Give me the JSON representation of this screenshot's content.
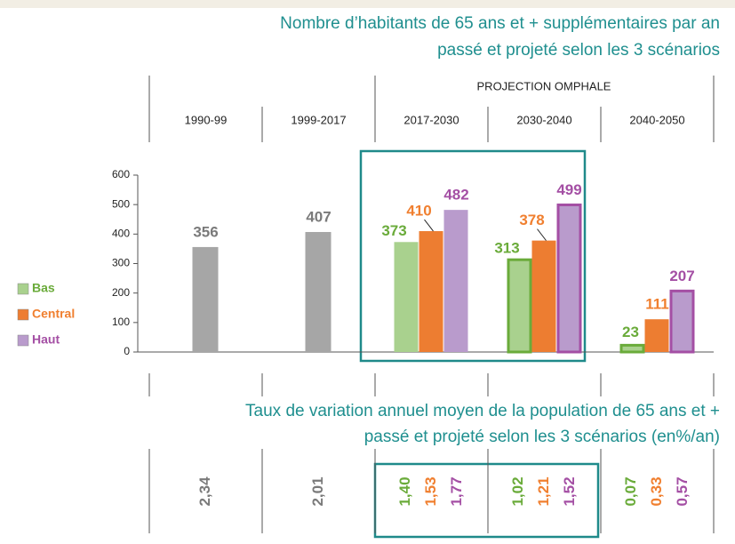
{
  "chart_data": {
    "type": "bar",
    "title": [
      "Nombre d’habitants de 65 ans et + supplémentaires par an",
      "passé et projeté selon les 3 scénarios"
    ],
    "group_label": "PROJECTION OMPHALE",
    "categories": [
      "1990-99",
      "1999-2017",
      "2017-2030",
      "2030-2040",
      "2040-2050"
    ],
    "ylim": [
      0,
      600
    ],
    "yticks": [
      0,
      100,
      200,
      300,
      400,
      500,
      600
    ],
    "series": [
      {
        "color": "#a6a6a6",
        "label_color": "#7a7a7a",
        "values": [
          356,
          407,
          null,
          null,
          null
        ]
      },
      {
        "name": "Bas",
        "color": "#a9d18e",
        "label_color": "#6aab3a",
        "values": [
          null,
          null,
          373,
          313,
          23
        ]
      },
      {
        "name": "Central",
        "color": "#ed7d31",
        "label_color": "#f07f2f",
        "values": [
          null,
          null,
          410,
          378,
          111
        ]
      },
      {
        "name": "Haut",
        "color": "#b99bcc",
        "label_color": "#a44fa4",
        "values": [
          null,
          null,
          482,
          499,
          207
        ]
      }
    ],
    "rate_table": {
      "title": [
        "Taux de variation annuel moyen de la population de 65 ans et +",
        "passé et projeté selon les 3 scénarios (en%/an)"
      ],
      "series": [
        {
          "values": [
            2.34,
            2.01,
            null,
            null,
            null
          ],
          "value_labels": [
            "2,34",
            "2,01",
            null,
            null,
            null
          ]
        },
        {
          "values": [
            null,
            null,
            1.4,
            1.02,
            0.07
          ],
          "value_labels": [
            null,
            null,
            "1,40",
            "1,02",
            "0,07"
          ]
        },
        {
          "values": [
            null,
            null,
            1.53,
            1.21,
            0.33
          ],
          "value_labels": [
            null,
            null,
            "1,53",
            "1,21",
            "0,33"
          ]
        },
        {
          "values": [
            null,
            null,
            1.77,
            1.52,
            0.57
          ],
          "value_labels": [
            null,
            null,
            "1,77",
            "1,52",
            "0,57"
          ]
        }
      ]
    }
  }
}
